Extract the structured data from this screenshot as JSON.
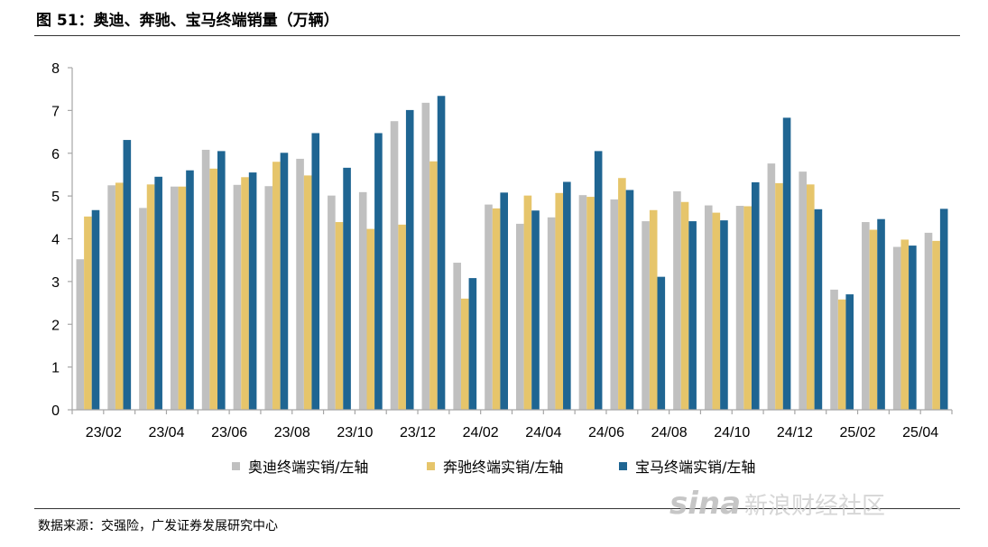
{
  "figure_title": "图 51：奥迪、奔驰、宝马终端销量（万辆）",
  "source_note": "数据来源：交强险，广发证券发展研究中心",
  "watermark": {
    "logo": "sina",
    "text": "新浪财经社区"
  },
  "colors": {
    "audi": "#C0C0C0",
    "benz": "#E6C56B",
    "bmw": "#1F6592",
    "axis": "#A6A6A6"
  },
  "chart_data": {
    "type": "bar",
    "title": "",
    "xlabel": "",
    "ylabel": "",
    "ylim": [
      0,
      8
    ],
    "yticks": [
      0,
      1,
      2,
      3,
      4,
      5,
      6,
      7,
      8
    ],
    "grid": false,
    "legend_position": "bottom",
    "categories": [
      "23/02",
      "23/03",
      "23/04",
      "23/05",
      "23/06",
      "23/07",
      "23/08",
      "23/09",
      "23/10",
      "23/11",
      "23/12",
      "24/01",
      "24/02",
      "24/03",
      "24/04",
      "24/05",
      "24/06",
      "24/07",
      "24/08",
      "24/09",
      "24/10",
      "24/11",
      "24/12",
      "25/01",
      "25/02",
      "25/03",
      "25/04",
      "25/05"
    ],
    "tick_labels": [
      "23/02",
      "23/04",
      "23/06",
      "23/08",
      "23/10",
      "23/12",
      "24/02",
      "24/04",
      "24/06",
      "24/08",
      "24/10",
      "24/12",
      "25/02",
      "25/04"
    ],
    "series": [
      {
        "name": "奥迪终端实销/左轴",
        "color": "#C0C0C0",
        "values": [
          3.52,
          5.25,
          4.72,
          5.22,
          6.08,
          5.26,
          5.23,
          5.87,
          5.01,
          5.09,
          6.75,
          7.18,
          3.44,
          4.8,
          4.35,
          4.5,
          5.02,
          4.92,
          4.41,
          5.11,
          4.78,
          4.77,
          5.76,
          5.57,
          2.81,
          4.39,
          3.81,
          4.14
        ]
      },
      {
        "name": "奔驰终端实销/左轴",
        "color": "#E6C56B",
        "values": [
          4.52,
          5.31,
          5.27,
          5.22,
          5.64,
          5.44,
          5.8,
          5.48,
          4.39,
          4.23,
          4.33,
          5.81,
          2.6,
          4.71,
          5.01,
          5.07,
          4.98,
          5.42,
          4.67,
          4.86,
          4.61,
          4.76,
          5.3,
          5.27,
          2.58,
          4.21,
          3.98,
          3.95
        ]
      },
      {
        "name": "宝马终端实销/左轴",
        "color": "#1F6592",
        "values": [
          4.67,
          6.31,
          5.45,
          5.6,
          6.05,
          5.55,
          6.01,
          6.47,
          5.66,
          6.47,
          7.01,
          7.34,
          3.08,
          5.08,
          4.66,
          5.33,
          6.05,
          5.14,
          3.11,
          4.41,
          4.43,
          5.32,
          6.83,
          4.69,
          2.7,
          4.46,
          3.84,
          4.7
        ]
      }
    ]
  }
}
